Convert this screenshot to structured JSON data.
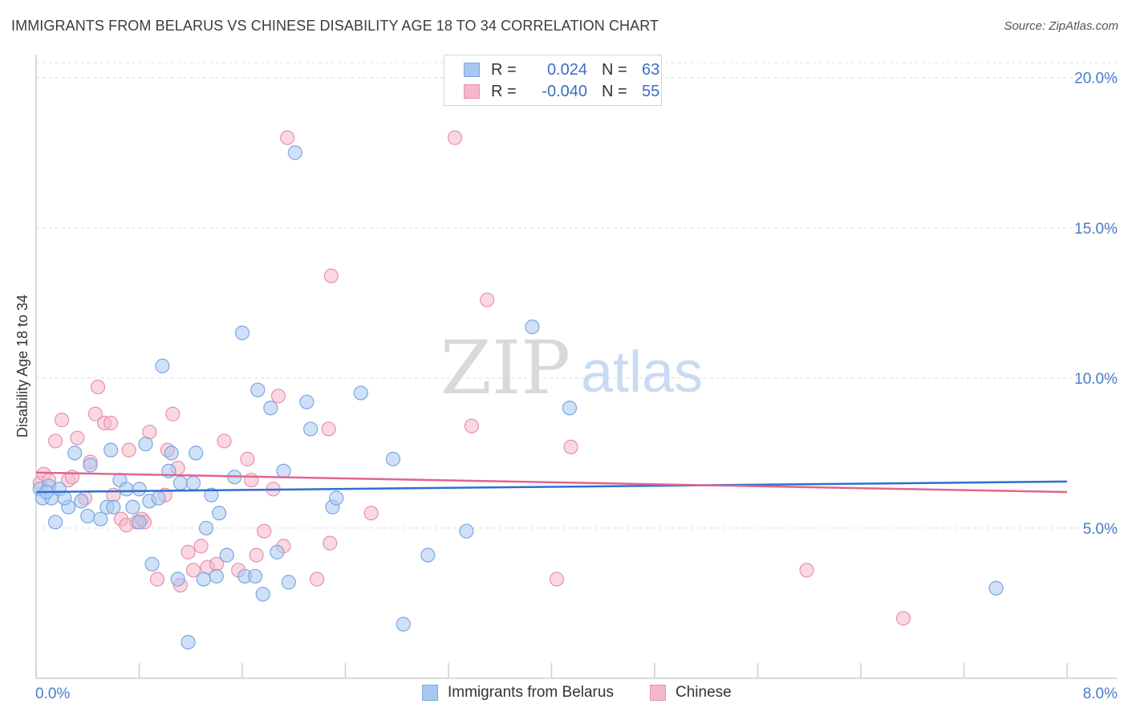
{
  "title": "IMMIGRANTS FROM BELARUS VS CHINESE DISABILITY AGE 18 TO 34 CORRELATION CHART",
  "source": "Source: ZipAtlas.com",
  "watermark": {
    "zip": "ZIP",
    "atlas": "atlas"
  },
  "colors": {
    "blue_fill": "#a9c8f0",
    "blue_stroke": "#7aa7e0",
    "blue_line": "#2e6fd0",
    "pink_fill": "#f5b8cb",
    "pink_stroke": "#ea8fae",
    "pink_line": "#e2648f",
    "tick_text": "#4a7cc9",
    "grid": "#dcdcdc"
  },
  "legend": {
    "rows": [
      {
        "r_label": "R =",
        "r_value": "0.024",
        "n_label": "N =",
        "n_value": "63"
      },
      {
        "r_label": "R =",
        "r_value": "-0.040",
        "n_label": "N =",
        "n_value": "55"
      }
    ]
  },
  "chart_data": {
    "type": "scatter",
    "title": "IMMIGRANTS FROM BELARUS VS CHINESE DISABILITY AGE 18 TO 34 CORRELATION CHART",
    "xlabel": "",
    "ylabel": "Disability Age 18 to 34",
    "xlim": [
      0,
      8
    ],
    "ylim": [
      0,
      20.5
    ],
    "x_tick_labels": [
      "0.0%",
      "8.0%"
    ],
    "y_ticks": [
      5,
      10,
      15,
      20
    ],
    "y_tick_labels": [
      "5.0%",
      "10.0%",
      "15.0%",
      "20.0%"
    ],
    "grid": true,
    "legend_position": "bottom",
    "series": [
      {
        "name": "Immigrants from Belarus",
        "R": 0.024,
        "N": 63,
        "trend": {
          "x": [
            0,
            8
          ],
          "y": [
            6.2,
            6.55
          ]
        },
        "points": [
          [
            0.03,
            6.3
          ],
          [
            0.05,
            6.0
          ],
          [
            0.1,
            6.4
          ],
          [
            0.12,
            6.0
          ],
          [
            0.15,
            5.2
          ],
          [
            0.18,
            6.3
          ],
          [
            0.25,
            5.7
          ],
          [
            0.22,
            6.0
          ],
          [
            0.3,
            7.5
          ],
          [
            0.35,
            5.9
          ],
          [
            0.4,
            5.4
          ],
          [
            0.42,
            7.1
          ],
          [
            0.5,
            5.3
          ],
          [
            0.55,
            5.7
          ],
          [
            0.58,
            7.6
          ],
          [
            0.6,
            5.7
          ],
          [
            0.65,
            6.6
          ],
          [
            0.7,
            6.3
          ],
          [
            0.75,
            5.7
          ],
          [
            0.8,
            5.2
          ],
          [
            0.8,
            6.3
          ],
          [
            0.85,
            7.8
          ],
          [
            0.88,
            5.9
          ],
          [
            0.9,
            3.8
          ],
          [
            0.95,
            6.0
          ],
          [
            0.98,
            10.4
          ],
          [
            1.03,
            6.9
          ],
          [
            1.05,
            7.5
          ],
          [
            1.1,
            3.3
          ],
          [
            1.12,
            6.5
          ],
          [
            1.18,
            1.2
          ],
          [
            1.22,
            6.5
          ],
          [
            1.24,
            7.5
          ],
          [
            1.3,
            3.3
          ],
          [
            1.32,
            5.0
          ],
          [
            1.36,
            6.1
          ],
          [
            1.4,
            3.4
          ],
          [
            1.42,
            5.5
          ],
          [
            1.48,
            4.1
          ],
          [
            1.54,
            6.7
          ],
          [
            1.6,
            11.5
          ],
          [
            1.62,
            3.4
          ],
          [
            1.7,
            3.4
          ],
          [
            1.72,
            9.6
          ],
          [
            1.76,
            2.8
          ],
          [
            1.82,
            9.0
          ],
          [
            1.87,
            4.2
          ],
          [
            1.92,
            6.9
          ],
          [
            1.96,
            3.2
          ],
          [
            2.01,
            17.5
          ],
          [
            2.1,
            9.2
          ],
          [
            2.13,
            8.3
          ],
          [
            2.3,
            5.7
          ],
          [
            2.33,
            6.0
          ],
          [
            2.52,
            9.5
          ],
          [
            2.77,
            7.3
          ],
          [
            2.85,
            1.8
          ],
          [
            3.04,
            4.1
          ],
          [
            3.34,
            4.9
          ],
          [
            3.85,
            11.7
          ],
          [
            4.14,
            9.0
          ],
          [
            7.45,
            3.0
          ],
          [
            0.08,
            6.2
          ]
        ]
      },
      {
        "name": "Chinese",
        "R": -0.04,
        "N": 55,
        "trend": {
          "x": [
            0,
            8
          ],
          "y": [
            6.85,
            6.2
          ]
        },
        "points": [
          [
            0.03,
            6.5
          ],
          [
            0.06,
            6.8
          ],
          [
            0.1,
            6.6
          ],
          [
            0.15,
            7.9
          ],
          [
            0.2,
            8.6
          ],
          [
            0.25,
            6.6
          ],
          [
            0.28,
            6.7
          ],
          [
            0.32,
            8.0
          ],
          [
            0.38,
            6.0
          ],
          [
            0.42,
            7.2
          ],
          [
            0.46,
            8.8
          ],
          [
            0.48,
            9.7
          ],
          [
            0.53,
            8.5
          ],
          [
            0.58,
            8.5
          ],
          [
            0.6,
            6.1
          ],
          [
            0.66,
            5.3
          ],
          [
            0.7,
            5.1
          ],
          [
            0.72,
            7.6
          ],
          [
            0.78,
            5.2
          ],
          [
            0.82,
            5.3
          ],
          [
            0.84,
            5.2
          ],
          [
            0.88,
            8.2
          ],
          [
            0.94,
            3.3
          ],
          [
            1.0,
            6.1
          ],
          [
            1.02,
            7.6
          ],
          [
            1.06,
            8.8
          ],
          [
            1.1,
            7.0
          ],
          [
            1.12,
            3.1
          ],
          [
            1.18,
            4.2
          ],
          [
            1.22,
            3.6
          ],
          [
            1.28,
            4.4
          ],
          [
            1.33,
            3.7
          ],
          [
            1.4,
            3.8
          ],
          [
            1.46,
            7.9
          ],
          [
            1.57,
            3.6
          ],
          [
            1.64,
            7.3
          ],
          [
            1.67,
            6.6
          ],
          [
            1.71,
            4.1
          ],
          [
            1.77,
            4.9
          ],
          [
            1.84,
            6.3
          ],
          [
            1.88,
            9.4
          ],
          [
            1.92,
            4.4
          ],
          [
            1.95,
            18.0
          ],
          [
            2.18,
            3.3
          ],
          [
            2.27,
            8.3
          ],
          [
            2.29,
            13.4
          ],
          [
            2.28,
            4.5
          ],
          [
            2.6,
            5.5
          ],
          [
            3.25,
            18.0
          ],
          [
            3.38,
            8.4
          ],
          [
            3.5,
            12.6
          ],
          [
            4.04,
            3.3
          ],
          [
            4.15,
            7.7
          ],
          [
            5.98,
            3.6
          ],
          [
            6.73,
            2.0
          ]
        ]
      }
    ]
  }
}
